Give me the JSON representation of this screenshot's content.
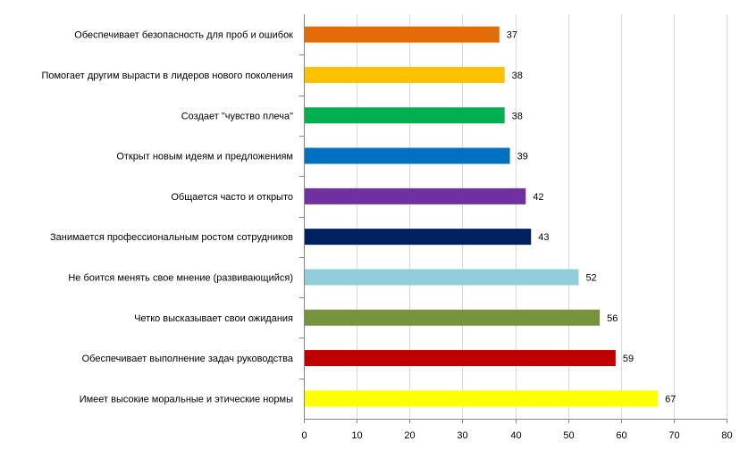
{
  "chart_data": {
    "type": "bar",
    "orientation": "horizontal",
    "title": "",
    "xlabel": "",
    "ylabel": "",
    "xlim": [
      0,
      80
    ],
    "x_ticks": [
      0,
      10,
      20,
      30,
      40,
      50,
      60,
      70,
      80
    ],
    "grid": "vertical major gridlines",
    "legend": "none",
    "categories": [
      "Обеспечивает  безопасность для проб и ошибок",
      "Помогает другим вырасти в лидеров нового поколения",
      "Создает \"чувство  плеча\"",
      "Открыт новым идеям  и  предложениям",
      "Общается часто и открыто",
      "Занимается профессиональным ростом сотрудников",
      "Не боится менять  свое мнение  (развивающийся)",
      "Четко  высказывает свои ожидания",
      "Обеспечивает  выполнение  задач руководства",
      "Имеет  высокие  моральные и этические  нормы"
    ],
    "values": [
      37,
      38,
      38,
      39,
      42,
      43,
      52,
      56,
      59,
      67
    ],
    "colors": [
      "#E36C09",
      "#FFC000",
      "#00B050",
      "#0070C0",
      "#7030A0",
      "#002060",
      "#92CDDC",
      "#77933C",
      "#C00000",
      "#FFFF00"
    ]
  }
}
